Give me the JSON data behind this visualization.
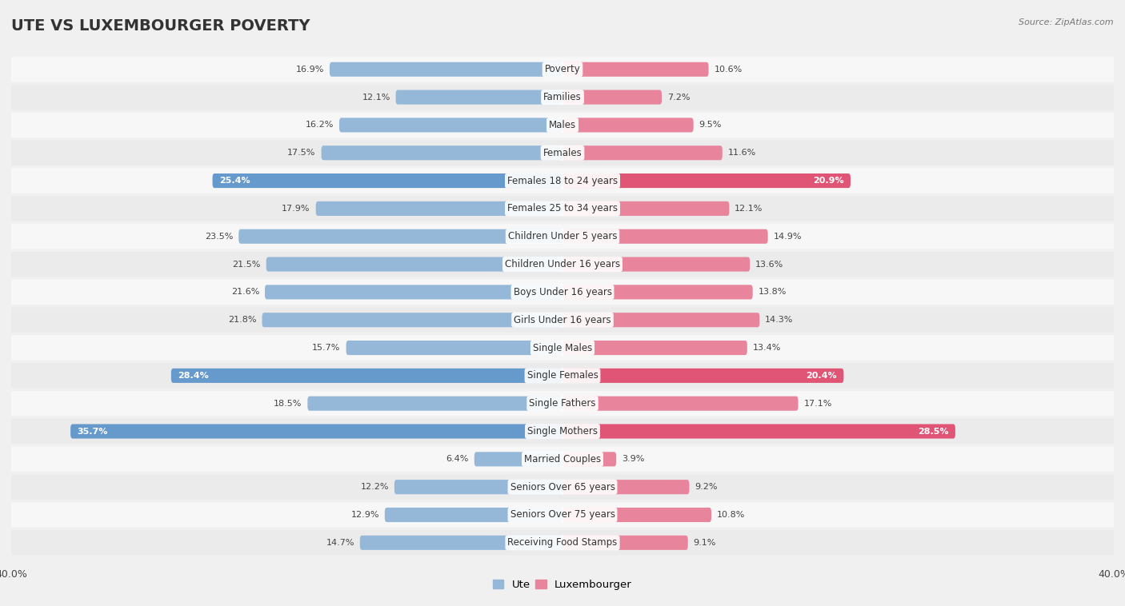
{
  "title": "UTE VS LUXEMBOURGER POVERTY",
  "source": "Source: ZipAtlas.com",
  "categories": [
    "Poverty",
    "Families",
    "Males",
    "Females",
    "Females 18 to 24 years",
    "Females 25 to 34 years",
    "Children Under 5 years",
    "Children Under 16 years",
    "Boys Under 16 years",
    "Girls Under 16 years",
    "Single Males",
    "Single Females",
    "Single Fathers",
    "Single Mothers",
    "Married Couples",
    "Seniors Over 65 years",
    "Seniors Over 75 years",
    "Receiving Food Stamps"
  ],
  "ute_values": [
    16.9,
    12.1,
    16.2,
    17.5,
    25.4,
    17.9,
    23.5,
    21.5,
    21.6,
    21.8,
    15.7,
    28.4,
    18.5,
    35.7,
    6.4,
    12.2,
    12.9,
    14.7
  ],
  "lux_values": [
    10.6,
    7.2,
    9.5,
    11.6,
    20.9,
    12.1,
    14.9,
    13.6,
    13.8,
    14.3,
    13.4,
    20.4,
    17.1,
    28.5,
    3.9,
    9.2,
    10.8,
    9.1
  ],
  "ute_color": "#95b8d9",
  "lux_color": "#e8849c",
  "highlight_ute_color": "#6699cc",
  "highlight_lux_color": "#e05575",
  "highlight_rows": [
    4,
    11,
    13
  ],
  "axis_max": 40.0,
  "bar_height": 0.52,
  "background_color": "#f0f0f0",
  "row_color_odd": "#f7f7f7",
  "row_color_even": "#ebebeb",
  "title_fontsize": 14,
  "label_fontsize": 8.5,
  "value_fontsize": 8,
  "legend_labels": [
    "Ute",
    "Luxembourger"
  ]
}
